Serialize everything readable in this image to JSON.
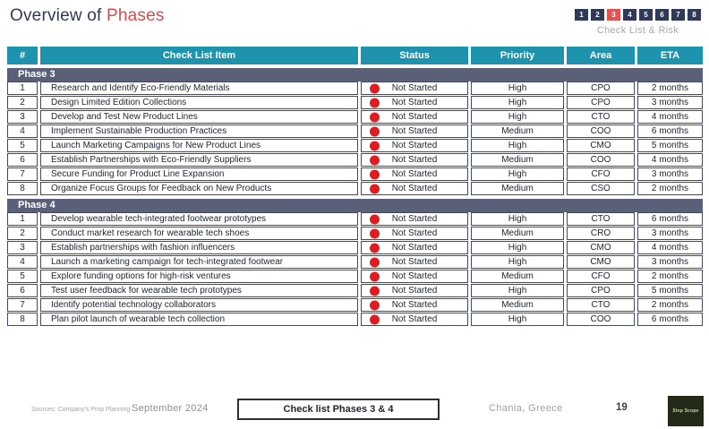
{
  "title": {
    "prefix": "Overview of ",
    "highlight": "Phases"
  },
  "pager": {
    "boxes": [
      "1",
      "2",
      "3",
      "4",
      "5",
      "6",
      "7",
      "8"
    ],
    "active_index": 2,
    "caption": "Check List & Risk"
  },
  "table": {
    "headers": [
      "#",
      "Check List Item",
      "Status",
      "Priority",
      "Area",
      "ETA"
    ],
    "sections": [
      {
        "name": "Phase 3",
        "rows": [
          {
            "num": "1",
            "item": "Research and Identify Eco-Friendly Materials",
            "status": "Not Started",
            "priority": "High",
            "area": "CPO",
            "eta": "2 months"
          },
          {
            "num": "2",
            "item": "Design Limited Edition Collections",
            "status": "Not Started",
            "priority": "High",
            "area": "CPO",
            "eta": "3 months"
          },
          {
            "num": "3",
            "item": "Develop and Test New Product Lines",
            "status": "Not Started",
            "priority": "High",
            "area": "CTO",
            "eta": "4 months"
          },
          {
            "num": "4",
            "item": "Implement Sustainable Production Practices",
            "status": "Not Started",
            "priority": "Medium",
            "area": "COO",
            "eta": "6 months"
          },
          {
            "num": "5",
            "item": "Launch Marketing Campaigns for New Product Lines",
            "status": "Not Started",
            "priority": "High",
            "area": "CMO",
            "eta": "5 months"
          },
          {
            "num": "6",
            "item": "Establish Partnerships with Eco-Friendly Suppliers",
            "status": "Not Started",
            "priority": "Medium",
            "area": "COO",
            "eta": "4 months"
          },
          {
            "num": "7",
            "item": "Secure Funding for Product Line Expansion",
            "status": "Not Started",
            "priority": "High",
            "area": "CFO",
            "eta": "3 months"
          },
          {
            "num": "8",
            "item": "Organize Focus Groups for Feedback on New Products",
            "status": "Not Started",
            "priority": "Medium",
            "area": "CSO",
            "eta": "2 months"
          }
        ]
      },
      {
        "name": "Phase 4",
        "rows": [
          {
            "num": "1",
            "item": "Develop wearable tech-integrated footwear prototypes",
            "status": "Not Started",
            "priority": "High",
            "area": "CTO",
            "eta": "6 months"
          },
          {
            "num": "2",
            "item": "Conduct market research for wearable tech shoes",
            "status": "Not Started",
            "priority": "Medium",
            "area": "CRO",
            "eta": "3 months"
          },
          {
            "num": "3",
            "item": "Establish partnerships with fashion influencers",
            "status": "Not Started",
            "priority": "High",
            "area": "CMO",
            "eta": "4 months"
          },
          {
            "num": "4",
            "item": "Launch a marketing campaign for tech-integrated footwear",
            "status": "Not Started",
            "priority": "High",
            "area": "CMO",
            "eta": "3 months"
          },
          {
            "num": "5",
            "item": "Explore funding options for high-risk ventures",
            "status": "Not Started",
            "priority": "Medium",
            "area": "CFO",
            "eta": "2 months"
          },
          {
            "num": "6",
            "item": "Test user feedback for wearable tech prototypes",
            "status": "Not Started",
            "priority": "High",
            "area": "CPO",
            "eta": "5 months"
          },
          {
            "num": "7",
            "item": "Identify potential technology collaborators",
            "status": "Not Started",
            "priority": "Medium",
            "area": "CTO",
            "eta": "2 months"
          },
          {
            "num": "8",
            "item": "Plan pilot launch of wearable tech collection",
            "status": "Not Started",
            "priority": "High",
            "area": "COO",
            "eta": "6 months"
          }
        ]
      }
    ]
  },
  "footer": {
    "sources": "Sources: Company's Prop Planning",
    "date": "September 2024",
    "box_label": "Check list Phases 3 & 4",
    "location": "Chania, Greece",
    "page_number": "19",
    "logo_text": "Step Scope"
  },
  "colors": {
    "navy": "#2e3a57",
    "title_red": "#d94a4d",
    "active_tab": "#e25353",
    "header_teal": "#1e93ae",
    "phase_bar": "#5a6078",
    "status_dot": "#e01c20"
  }
}
